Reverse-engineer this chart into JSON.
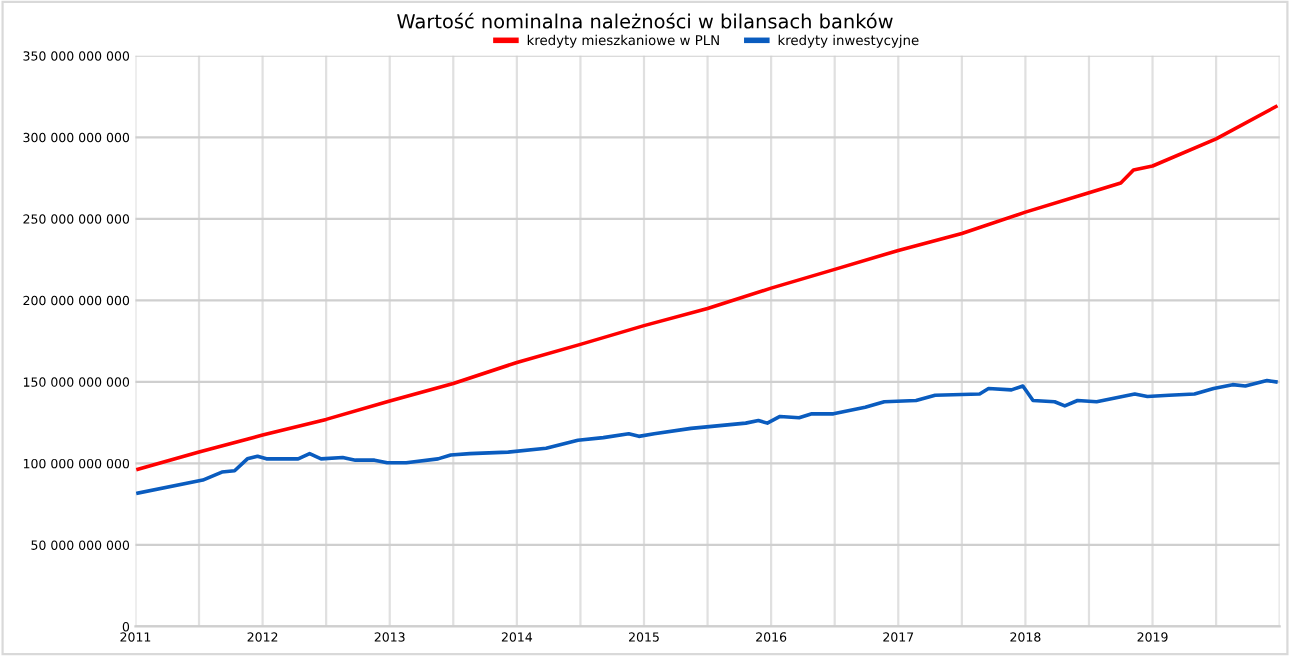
{
  "chart_data": {
    "type": "line",
    "title": "Wartość nominalna należności w bilansach banków",
    "legend": "top",
    "grid": true,
    "marker": "none",
    "line_style": "solid",
    "xlim": [
      2011,
      2020
    ],
    "xticks": [
      2011,
      {
        "value": 2011.5,
        "label": null
      },
      2012,
      {
        "value": 2012.5,
        "label": null
      },
      2013,
      {
        "value": 2013.5,
        "label": null
      },
      2014,
      {
        "value": 2014.5,
        "label": null
      },
      2015,
      {
        "value": 2015.5,
        "label": null
      },
      2016,
      {
        "value": 2016.5,
        "label": null
      },
      2017,
      {
        "value": 2017.5,
        "label": null
      },
      2018,
      {
        "value": 2018.5,
        "label": null
      },
      2019,
      {
        "value": 2019.5,
        "label": null
      },
      {
        "value": 2020,
        "label": null
      }
    ],
    "ylim": [
      0,
      350000000000
    ],
    "yticks": [
      {
        "value": 0,
        "label": "0"
      },
      {
        "value": 50000000000,
        "label": "50 000 000 000"
      },
      {
        "value": 100000000000,
        "label": "100 000 000 000"
      },
      {
        "value": 150000000000,
        "label": "150 000 000 000"
      },
      {
        "value": 200000000000,
        "label": "200 000 000 000"
      },
      {
        "value": 250000000000,
        "label": "250 000 000 000"
      },
      {
        "value": 300000000000,
        "label": "300 000 000 000"
      },
      {
        "value": 350000000000,
        "label": "350 000 000 000"
      }
    ],
    "series": [
      {
        "name": "kredyty mieszkaniowe w PLN",
        "color": "#ff0000",
        "x": [
          2011.02,
          2011.5,
          2012.0,
          2012.5,
          2013.0,
          2013.5,
          2014.0,
          2014.5,
          2015.0,
          2015.5,
          2016.0,
          2016.5,
          2017.0,
          2017.5,
          2018.0,
          2018.5,
          2018.75,
          2018.85,
          2019.0,
          2019.5,
          2019.97
        ],
        "values": [
          96400000000.0,
          107000000000.0,
          117400000000.0,
          127000000000.0,
          138300000000.0,
          149000000000.0,
          161900000000.0,
          173000000000.0,
          184500000000.0,
          195000000000.0,
          207500000000.0,
          219000000000.0,
          230600000000.0,
          241000000000.0,
          254100000000.0,
          266000000000.0,
          272000000000.0,
          280000000000.0,
          282400000000.0,
          299000000000.0,
          318800000000.0
        ]
      },
      {
        "name": "kredyty inwestycyjne",
        "color": "#0a5cbf",
        "x": [
          2011.02,
          2011.53,
          2011.68,
          2011.78,
          2011.88,
          2011.96,
          2012.03,
          2012.28,
          2012.37,
          2012.46,
          2012.63,
          2012.73,
          2012.88,
          2012.98,
          2013.13,
          2013.38,
          2013.48,
          2013.63,
          2013.93,
          2014.23,
          2014.48,
          2014.68,
          2014.88,
          2014.96,
          2015.08,
          2015.37,
          2015.8,
          2015.9,
          2015.97,
          2016.07,
          2016.22,
          2016.32,
          2016.49,
          2016.74,
          2016.89,
          2017.14,
          2017.29,
          2017.64,
          2017.71,
          2017.89,
          2017.98,
          2018.06,
          2018.23,
          2018.31,
          2018.41,
          2018.56,
          2018.86,
          2018.96,
          2019.13,
          2019.33,
          2019.48,
          2019.63,
          2019.73,
          2019.9,
          2019.97
        ],
        "values": [
          81800000000.0,
          89800000000.0,
          94700000000.0,
          95500000000.0,
          102800000000.0,
          104400000000.0,
          102800000000.0,
          102800000000.0,
          106000000000.0,
          102800000000.0,
          103600000000.0,
          102000000000.0,
          102000000000.0,
          100400000000.0,
          100400000000.0,
          102800000000.0,
          105200000000.0,
          106000000000.0,
          106900000000.0,
          109300000000.0,
          114200000000.0,
          115800000000.0,
          118200000000.0,
          116600000000.0,
          118200000000.0,
          121500000000.0,
          124700000000.0,
          126300000000.0,
          124700000000.0,
          128800000000.0,
          128000000000.0,
          130400000000.0,
          130400000000.0,
          134500000000.0,
          137800000000.0,
          138600000000.0,
          141800000000.0,
          142600000000.0,
          145900000000.0,
          145100000000.0,
          147500000000.0,
          138600000000.0,
          137800000000.0,
          135300000000.0,
          138600000000.0,
          137800000000.0,
          142600000000.0,
          141000000000.0,
          141800000000.0,
          142600000000.0,
          145900000000.0,
          148300000000.0,
          147500000000.0,
          150800000000.0,
          150000000000.0
        ]
      }
    ]
  }
}
